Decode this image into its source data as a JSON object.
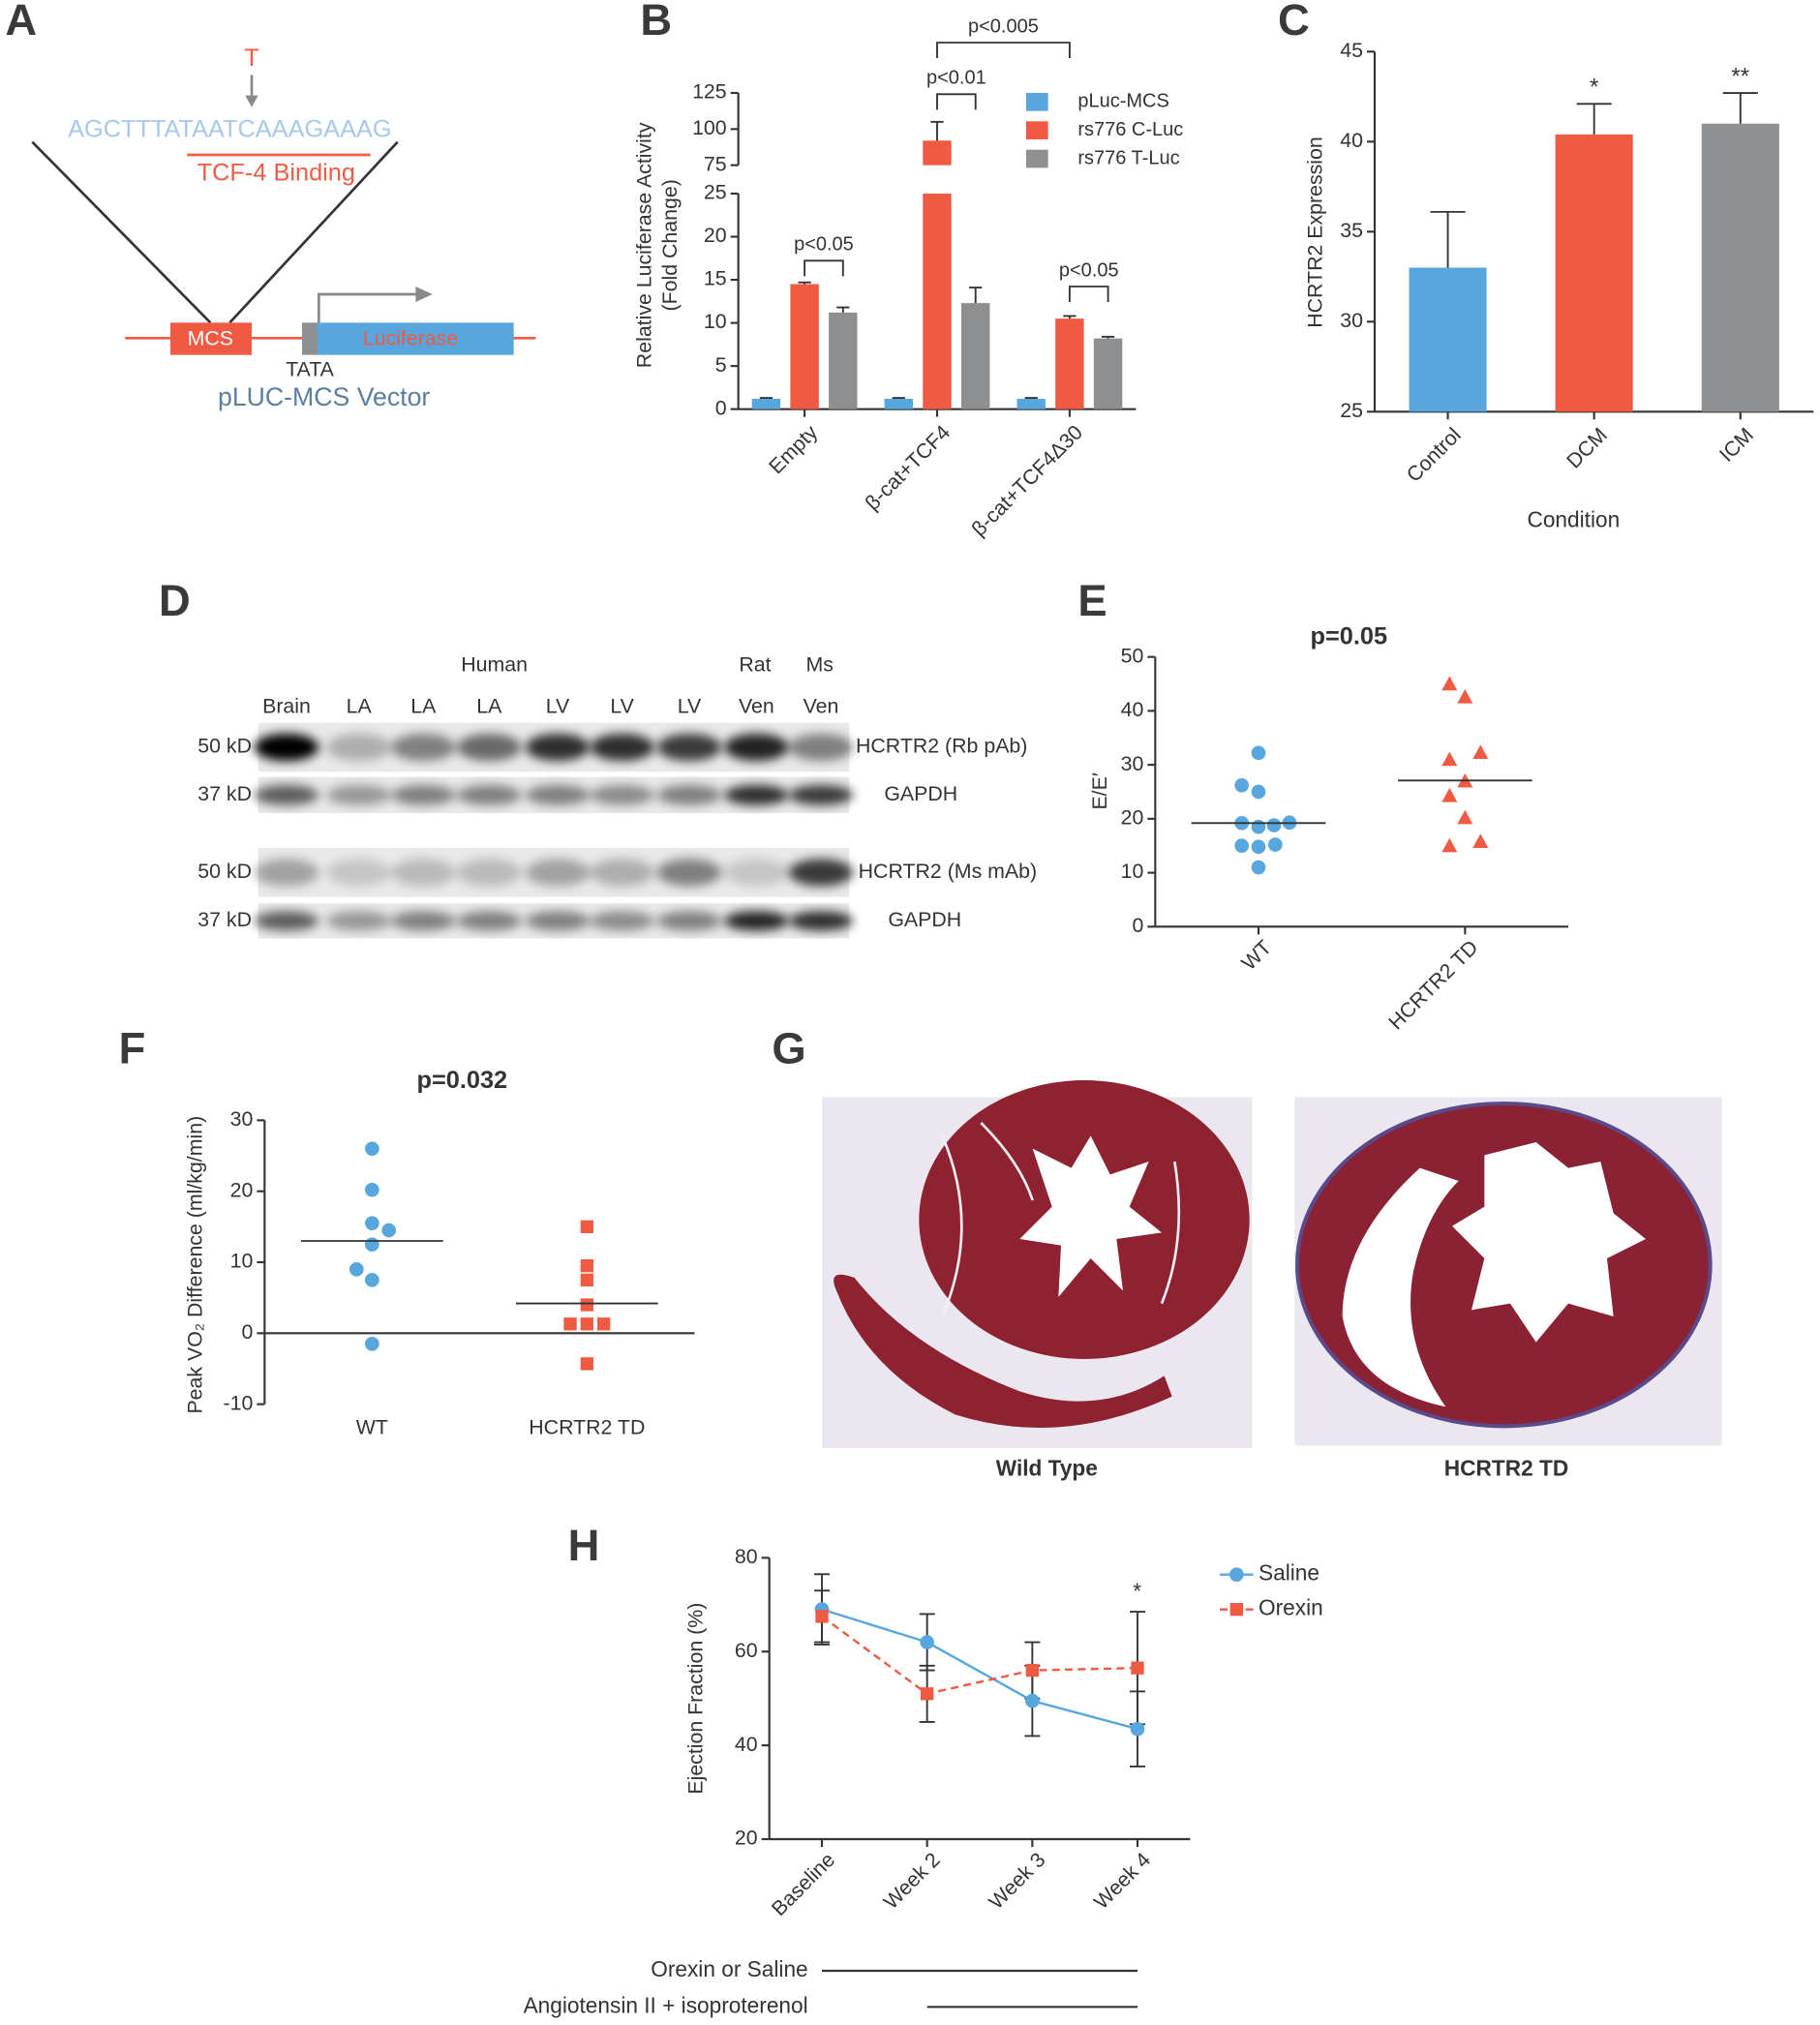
{
  "panel_labels": [
    "A",
    "B",
    "C",
    "D",
    "E",
    "F",
    "G",
    "H"
  ],
  "panel_a": {
    "mutation": "T",
    "sequence": "AGCTTTATAATCAAAGAAAG",
    "binding": "TCF-4 Binding",
    "mcs": "MCS",
    "tata": "TATA",
    "gene": "Luciferase",
    "vector": "pLUC-MCS Vector"
  },
  "panel_d": {
    "groups": [
      "Human",
      "Rat",
      "Ms"
    ],
    "lanes": [
      "Brain",
      "LA",
      "LA",
      "LA",
      "LV",
      "LV",
      "LV",
      "Ven",
      "Ven"
    ],
    "blots": [
      {
        "size": "50 kD",
        "label": "HCRTR2 (Rb pAb)"
      },
      {
        "size": "37 kD",
        "label": "GAPDH"
      },
      {
        "size": "50 kD",
        "label": "HCRTR2 (Ms mAb)"
      },
      {
        "size": "37 kD",
        "label": "GAPDH"
      }
    ]
  },
  "panel_g": {
    "captions": [
      "Wild Type",
      "HCRTR2 TD"
    ]
  },
  "chart_data": [
    {
      "type": "bar",
      "categories": [
        "Empty",
        "β-cat+TCF4",
        "β-cat+TCF4Δ30"
      ],
      "series": [
        {
          "name": "pLuc-MCS",
          "color": "#58a6de",
          "values": [
            1.2,
            1.2,
            1.2
          ],
          "errors": [
            0.1,
            0.1,
            0.1
          ]
        },
        {
          "name": "rs776 C-Luc",
          "color": "#ef5a43",
          "values": [
            14.5,
            92,
            10.5
          ],
          "errors": [
            0.2,
            13,
            0.3
          ]
        },
        {
          "name": "rs776 T-Luc",
          "color": "#8e8f91",
          "values": [
            11.2,
            12.3,
            8.2
          ],
          "errors": [
            0.6,
            1.8,
            0.2
          ]
        }
      ],
      "ylabel": [
        "Relative Luciferase Activity",
        "(Fold Change)"
      ],
      "ylim": [
        0,
        125
      ],
      "y_break": [
        25,
        75
      ],
      "yticks": [
        0,
        5,
        10,
        15,
        20,
        25,
        75,
        100,
        125
      ],
      "annotations": [
        "p<0.05",
        "p<0.01",
        "p<0.005",
        "p<0.05"
      ]
    },
    {
      "type": "bar",
      "categories": [
        "Control",
        "DCM",
        "ICM"
      ],
      "colors": [
        "#58a6de",
        "#ef5a43",
        "#8e8f91"
      ],
      "values": [
        33.0,
        40.4,
        41.0
      ],
      "errors": [
        3.1,
        1.7,
        1.7
      ],
      "annotations": [
        null,
        "*",
        "**"
      ],
      "xlabel": "Condition",
      "ylabel": "HCRTR2 Expression",
      "ylim": [
        25,
        45
      ],
      "yticks": [
        25,
        30,
        35,
        40,
        45
      ]
    },
    {
      "type": "strip",
      "title": "p=0.05",
      "categories": [
        "WT",
        "HCRTR2 TD"
      ],
      "ylabel": "E/E′",
      "groups": [
        {
          "color": "#58a6de",
          "marker": "circle",
          "values": [
            32.2,
            26.2,
            25.0,
            19.2,
            18.5,
            19.3,
            18.8,
            15.0,
            14.8,
            15.2,
            11.0
          ],
          "mean": 19.2
        },
        {
          "color": "#ef5a43",
          "marker": "triangle",
          "values": [
            45.0,
            42.6,
            32.3,
            31.0,
            27.0,
            24.3,
            20.2,
            15.8,
            15.0
          ],
          "mean": 27.1
        }
      ],
      "ylim": [
        0,
        50
      ],
      "yticks": [
        0,
        10,
        20,
        30,
        40,
        50
      ]
    },
    {
      "type": "strip",
      "title": "p=0.032",
      "categories": [
        "WT",
        "HCRTR2 TD"
      ],
      "ylabel": "Peak VO₂ Difference (ml/kg/min)",
      "groups": [
        {
          "color": "#58a6de",
          "marker": "circle",
          "values": [
            26.0,
            20.2,
            15.5,
            14.5,
            12.5,
            9.0,
            7.5,
            -1.5
          ],
          "mean": 13.0
        },
        {
          "color": "#ef5a43",
          "marker": "square",
          "values": [
            15.0,
            9.5,
            7.5,
            4.0,
            1.3,
            1.3,
            1.3,
            -4.3
          ],
          "mean": 4.2
        }
      ],
      "ylim": [
        -10,
        30
      ],
      "yticks": [
        -10,
        0,
        10,
        20,
        30
      ]
    },
    {
      "type": "line",
      "categories": [
        "Baseline",
        "Week 2",
        "Week 3",
        "Week 4"
      ],
      "ylabel": "Ejection Fraction (%)",
      "series": [
        {
          "name": "Saline",
          "color": "#58a6de",
          "marker": "circle",
          "dashed": false,
          "values": [
            69,
            62,
            49.5,
            43.5
          ],
          "errors": [
            7.5,
            6,
            7.5,
            8
          ]
        },
        {
          "name": "Orexin",
          "color": "#ef5a43",
          "marker": "square",
          "dashed": true,
          "values": [
            67.5,
            51,
            56,
            56.5
          ],
          "errors": [
            5.5,
            6,
            6,
            12
          ]
        }
      ],
      "ylim": [
        20,
        80
      ],
      "yticks": [
        20,
        40,
        60,
        80
      ],
      "annotations": [
        "*"
      ],
      "treatments": [
        "Orexin or Saline",
        "Angiotensin II + isoproterenol"
      ]
    }
  ]
}
